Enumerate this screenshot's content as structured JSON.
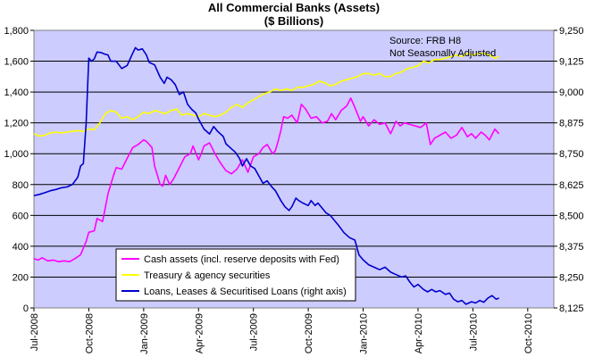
{
  "chart_data": {
    "type": "line",
    "title": "All Commercial Banks (Assets)",
    "subtitle": "($ Billions)",
    "annotation": [
      "Source: FRB H8",
      "Not Seasonally Adjusted"
    ],
    "x_categories": [
      "Jul-2008",
      "Oct-2008",
      "Jan-2009",
      "Apr-2009",
      "Jul-2009",
      "Oct-2009",
      "Jan-2010",
      "Apr-2010",
      "Jul-2010",
      "Oct-2010"
    ],
    "left_axis": {
      "min": 0,
      "max": 1800,
      "step": 200,
      "ticks": [
        "0",
        "200",
        "400",
        "600",
        "800",
        "1,000",
        "1,200",
        "1,400",
        "1,600",
        "1,800"
      ]
    },
    "right_axis": {
      "min": 8125,
      "max": 9250,
      "step": 125,
      "ticks": [
        "8,125",
        "8,250",
        "8,375",
        "8,500",
        "8,625",
        "8,750",
        "8,875",
        "9,000",
        "9,125",
        "9,250"
      ]
    },
    "plot_background": "#ccccff",
    "grid": true,
    "legend_position": "bottom-center inside plot",
    "series": [
      {
        "name": "Cash assets (incl. reserve deposits with Fed)",
        "axis": "left",
        "color": "#ff00ff",
        "points": [
          [
            0,
            320
          ],
          [
            0.15,
            310
          ],
          [
            0.3,
            325
          ],
          [
            0.5,
            305
          ],
          [
            0.7,
            310
          ],
          [
            0.9,
            300
          ],
          [
            1.1,
            305
          ],
          [
            1.3,
            300
          ],
          [
            1.5,
            320
          ],
          [
            1.7,
            345
          ],
          [
            1.9,
            430
          ],
          [
            2.0,
            490
          ],
          [
            2.2,
            500
          ],
          [
            2.3,
            580
          ],
          [
            2.5,
            560
          ],
          [
            2.6,
            650
          ],
          [
            2.7,
            740
          ],
          [
            2.9,
            860
          ],
          [
            3.0,
            910
          ],
          [
            3.2,
            900
          ],
          [
            3.4,
            970
          ],
          [
            3.6,
            1040
          ],
          [
            3.8,
            1060
          ],
          [
            4.0,
            1090
          ],
          [
            4.1,
            1080
          ],
          [
            4.3,
            1040
          ],
          [
            4.4,
            920
          ],
          [
            4.6,
            800
          ],
          [
            4.7,
            790
          ],
          [
            4.8,
            860
          ],
          [
            4.95,
            800
          ],
          [
            5.1,
            840
          ],
          [
            5.3,
            910
          ],
          [
            5.5,
            980
          ],
          [
            5.7,
            1000
          ],
          [
            5.8,
            1050
          ],
          [
            6.0,
            960
          ],
          [
            6.1,
            1000
          ],
          [
            6.2,
            1050
          ],
          [
            6.4,
            1070
          ],
          [
            6.6,
            1000
          ],
          [
            6.8,
            940
          ],
          [
            7.0,
            890
          ],
          [
            7.2,
            870
          ],
          [
            7.4,
            900
          ],
          [
            7.6,
            960
          ],
          [
            7.8,
            880
          ],
          [
            8.0,
            980
          ],
          [
            8.2,
            1000
          ],
          [
            8.35,
            1040
          ],
          [
            8.5,
            1060
          ],
          [
            8.7,
            1000
          ],
          [
            8.8,
            1020
          ],
          [
            8.9,
            1080
          ],
          [
            9.0,
            1150
          ],
          [
            9.1,
            1240
          ],
          [
            9.25,
            1230
          ],
          [
            9.4,
            1250
          ],
          [
            9.6,
            1200
          ],
          [
            9.75,
            1320
          ],
          [
            9.9,
            1290
          ],
          [
            10.1,
            1230
          ],
          [
            10.3,
            1240
          ],
          [
            10.5,
            1200
          ],
          [
            10.7,
            1210
          ],
          [
            10.85,
            1260
          ],
          [
            11.0,
            1220
          ],
          [
            11.2,
            1280
          ],
          [
            11.4,
            1310
          ],
          [
            11.55,
            1360
          ],
          [
            11.7,
            1300
          ],
          [
            11.9,
            1210
          ],
          [
            12.0,
            1240
          ],
          [
            12.2,
            1180
          ],
          [
            12.4,
            1220
          ],
          [
            12.6,
            1190
          ],
          [
            12.8,
            1200
          ],
          [
            13.0,
            1130
          ],
          [
            13.2,
            1210
          ],
          [
            13.35,
            1180
          ],
          [
            13.5,
            1200
          ],
          [
            13.7,
            1190
          ],
          [
            13.9,
            1180
          ],
          [
            14.1,
            1170
          ],
          [
            14.3,
            1200
          ],
          [
            14.45,
            1060
          ],
          [
            14.6,
            1100
          ],
          [
            14.8,
            1120
          ],
          [
            15.0,
            1140
          ],
          [
            15.2,
            1100
          ],
          [
            15.4,
            1120
          ],
          [
            15.6,
            1170
          ],
          [
            15.8,
            1110
          ],
          [
            15.95,
            1130
          ],
          [
            16.1,
            1100
          ],
          [
            16.3,
            1140
          ],
          [
            16.45,
            1120
          ],
          [
            16.6,
            1090
          ],
          [
            16.8,
            1160
          ],
          [
            16.95,
            1130
          ]
        ]
      },
      {
        "name": "Treasury & agency securities",
        "axis": "left",
        "color": "#ffff00",
        "points": [
          [
            0,
            1130
          ],
          [
            0.2,
            1115
          ],
          [
            0.4,
            1120
          ],
          [
            0.6,
            1135
          ],
          [
            0.8,
            1140
          ],
          [
            1.0,
            1135
          ],
          [
            1.2,
            1140
          ],
          [
            1.4,
            1145
          ],
          [
            1.6,
            1150
          ],
          [
            1.8,
            1145
          ],
          [
            2.0,
            1160
          ],
          [
            2.2,
            1155
          ],
          [
            2.4,
            1200
          ],
          [
            2.6,
            1260
          ],
          [
            2.8,
            1280
          ],
          [
            3.0,
            1270
          ],
          [
            3.2,
            1230
          ],
          [
            3.4,
            1240
          ],
          [
            3.6,
            1220
          ],
          [
            3.8,
            1240
          ],
          [
            4.0,
            1270
          ],
          [
            4.2,
            1260
          ],
          [
            4.4,
            1280
          ],
          [
            4.6,
            1270
          ],
          [
            4.8,
            1260
          ],
          [
            5.0,
            1280
          ],
          [
            5.2,
            1290
          ],
          [
            5.4,
            1250
          ],
          [
            5.6,
            1260
          ],
          [
            5.8,
            1250
          ],
          [
            6.0,
            1240
          ],
          [
            6.2,
            1260
          ],
          [
            6.4,
            1250
          ],
          [
            6.6,
            1240
          ],
          [
            6.8,
            1250
          ],
          [
            7.0,
            1270
          ],
          [
            7.2,
            1300
          ],
          [
            7.4,
            1320
          ],
          [
            7.6,
            1300
          ],
          [
            7.8,
            1330
          ],
          [
            8.0,
            1350
          ],
          [
            8.2,
            1370
          ],
          [
            8.4,
            1390
          ],
          [
            8.6,
            1400
          ],
          [
            8.8,
            1420
          ],
          [
            9.0,
            1410
          ],
          [
            9.2,
            1420
          ],
          [
            9.4,
            1410
          ],
          [
            9.6,
            1430
          ],
          [
            9.8,
            1430
          ],
          [
            10.0,
            1440
          ],
          [
            10.2,
            1450
          ],
          [
            10.4,
            1470
          ],
          [
            10.6,
            1460
          ],
          [
            10.8,
            1440
          ],
          [
            11.0,
            1450
          ],
          [
            11.2,
            1470
          ],
          [
            11.4,
            1480
          ],
          [
            11.6,
            1490
          ],
          [
            11.8,
            1500
          ],
          [
            12.0,
            1520
          ],
          [
            12.2,
            1520
          ],
          [
            12.4,
            1510
          ],
          [
            12.6,
            1520
          ],
          [
            12.8,
            1500
          ],
          [
            13.0,
            1500
          ],
          [
            13.2,
            1520
          ],
          [
            13.4,
            1530
          ],
          [
            13.6,
            1550
          ],
          [
            13.8,
            1560
          ],
          [
            14.0,
            1570
          ],
          [
            14.2,
            1600
          ],
          [
            14.4,
            1590
          ],
          [
            14.6,
            1610
          ],
          [
            14.8,
            1610
          ],
          [
            15.0,
            1620
          ],
          [
            15.2,
            1630
          ],
          [
            15.4,
            1640
          ],
          [
            15.6,
            1630
          ],
          [
            15.8,
            1650
          ],
          [
            16.0,
            1640
          ],
          [
            16.2,
            1650
          ],
          [
            16.4,
            1650
          ],
          [
            16.6,
            1640
          ],
          [
            16.8,
            1620
          ],
          [
            16.95,
            1630
          ]
        ]
      },
      {
        "name": "Loans, Leases & Securitised Loans (right axis)",
        "axis": "right",
        "color": "#0000cc",
        "points": [
          [
            0,
            8580
          ],
          [
            0.2,
            8585
          ],
          [
            0.4,
            8592
          ],
          [
            0.6,
            8600
          ],
          [
            0.8,
            8605
          ],
          [
            1.0,
            8612
          ],
          [
            1.2,
            8615
          ],
          [
            1.4,
            8625
          ],
          [
            1.5,
            8640
          ],
          [
            1.6,
            8655
          ],
          [
            1.7,
            8700
          ],
          [
            1.8,
            8710
          ],
          [
            1.9,
            8870
          ],
          [
            2.0,
            9138
          ],
          [
            2.1,
            9125
          ],
          [
            2.2,
            9135
          ],
          [
            2.3,
            9162
          ],
          [
            2.45,
            9160
          ],
          [
            2.55,
            9155
          ],
          [
            2.7,
            9150
          ],
          [
            2.8,
            9125
          ],
          [
            3.0,
            9125
          ],
          [
            3.2,
            9095
          ],
          [
            3.4,
            9108
          ],
          [
            3.55,
            9145
          ],
          [
            3.7,
            9180
          ],
          [
            3.8,
            9170
          ],
          [
            3.95,
            9175
          ],
          [
            4.1,
            9150
          ],
          [
            4.2,
            9120
          ],
          [
            4.4,
            9110
          ],
          [
            4.6,
            9060
          ],
          [
            4.75,
            9035
          ],
          [
            4.85,
            9060
          ],
          [
            5.0,
            9050
          ],
          [
            5.15,
            9030
          ],
          [
            5.3,
            8990
          ],
          [
            5.45,
            9000
          ],
          [
            5.6,
            8950
          ],
          [
            5.75,
            8930
          ],
          [
            5.9,
            8915
          ],
          [
            6.0,
            8890
          ],
          [
            6.2,
            8850
          ],
          [
            6.4,
            8830
          ],
          [
            6.55,
            8860
          ],
          [
            6.7,
            8840
          ],
          [
            6.9,
            8820
          ],
          [
            7.0,
            8790
          ],
          [
            7.2,
            8770
          ],
          [
            7.35,
            8755
          ],
          [
            7.5,
            8730
          ],
          [
            7.6,
            8700
          ],
          [
            7.75,
            8730
          ],
          [
            7.9,
            8700
          ],
          [
            8.05,
            8690
          ],
          [
            8.2,
            8660
          ],
          [
            8.35,
            8630
          ],
          [
            8.5,
            8640
          ],
          [
            8.65,
            8618
          ],
          [
            8.8,
            8600
          ],
          [
            9.0,
            8560
          ],
          [
            9.15,
            8535
          ],
          [
            9.3,
            8520
          ],
          [
            9.4,
            8535
          ],
          [
            9.55,
            8570
          ],
          [
            9.65,
            8560
          ],
          [
            9.8,
            8550
          ],
          [
            10.0,
            8540
          ],
          [
            10.1,
            8560
          ],
          [
            10.25,
            8540
          ],
          [
            10.35,
            8550
          ],
          [
            10.5,
            8530
          ],
          [
            10.65,
            8510
          ],
          [
            10.8,
            8500
          ],
          [
            10.95,
            8480
          ],
          [
            11.1,
            8460
          ],
          [
            11.3,
            8430
          ],
          [
            11.5,
            8410
          ],
          [
            11.7,
            8400
          ],
          [
            11.85,
            8340
          ],
          [
            12.0,
            8320
          ],
          [
            12.2,
            8300
          ],
          [
            12.4,
            8290
          ],
          [
            12.6,
            8280
          ],
          [
            12.8,
            8290
          ],
          [
            13.0,
            8270
          ],
          [
            13.2,
            8260
          ],
          [
            13.4,
            8250
          ],
          [
            13.55,
            8255
          ],
          [
            13.7,
            8230
          ],
          [
            13.85,
            8210
          ],
          [
            14.0,
            8220
          ],
          [
            14.2,
            8200
          ],
          [
            14.35,
            8190
          ],
          [
            14.5,
            8200
          ],
          [
            14.65,
            8190
          ],
          [
            14.8,
            8195
          ],
          [
            15.0,
            8180
          ],
          [
            15.15,
            8185
          ],
          [
            15.3,
            8160
          ],
          [
            15.45,
            8150
          ],
          [
            15.6,
            8155
          ],
          [
            15.75,
            8140
          ],
          [
            15.95,
            8150
          ],
          [
            16.1,
            8145
          ],
          [
            16.25,
            8155
          ],
          [
            16.4,
            8148
          ],
          [
            16.55,
            8165
          ],
          [
            16.7,
            8175
          ],
          [
            16.85,
            8160
          ],
          [
            16.95,
            8165
          ]
        ]
      }
    ]
  }
}
